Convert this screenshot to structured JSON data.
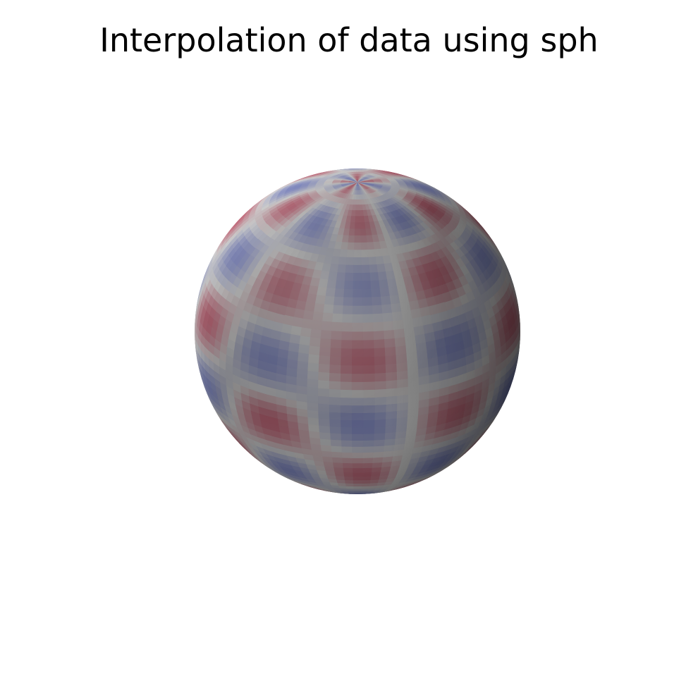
{
  "chart_data": {
    "type": "surface",
    "title": "Interpolation of data using sph",
    "surface": "sphere",
    "colormap": "coolwarm",
    "colormap_colors": [
      "#3b4cc0",
      "#dddddd",
      "#b40426"
    ],
    "pattern": {
      "description_source": "spherical harmonic interpolation shown as alternating warm/cool bands on a shaded sphere",
      "latitude_bands": 7,
      "longitude_lobes": 5
    },
    "axes_visible": false
  }
}
